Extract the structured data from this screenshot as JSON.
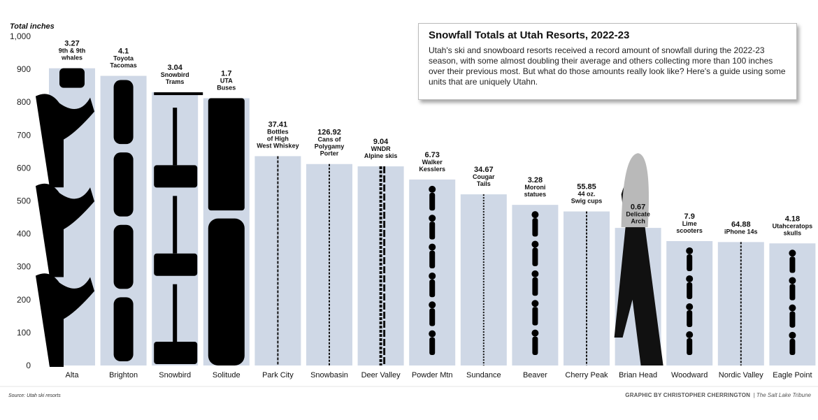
{
  "chart_data": {
    "type": "bar",
    "title": "Snowfall Totals at Utah Resorts, 2022-23",
    "subtitle": "Utah's ski and snowboard resorts received a record amount of snowfall during the 2022-23 season, with some almost doubling their average and others collecting more than 100 inches over their previous most. But what do those amounts really look like? Here's a guide using some units that are uniquely Utahn.",
    "ylabel": "Total inches",
    "ylim": [
      0,
      1000
    ],
    "yticks": [
      0,
      100,
      200,
      300,
      400,
      500,
      600,
      700,
      800,
      900,
      1000
    ],
    "yticks_text": [
      "0",
      "100",
      "200",
      "300",
      "400",
      "500",
      "600",
      "700",
      "800",
      "900",
      "1,000"
    ],
    "grid": false,
    "bar_color": "#cfd8e6",
    "icon_color": "#000000",
    "categories": [
      "Alta",
      "Brighton",
      "Snowbird",
      "Solitude",
      "Park City",
      "Snowbasin",
      "Deer Valley",
      "Powder Mtn",
      "Sundance",
      "Beaver",
      "Cherry Peak",
      "Brian Head",
      "Woodward",
      "Nordic Valley",
      "Eagle Point"
    ],
    "values": [
      903,
      880,
      830,
      812,
      636,
      612,
      605,
      565,
      520,
      488,
      468,
      418,
      378,
      375,
      371
    ],
    "unit_counts": [
      "3.27",
      "4.1",
      "3.04",
      "1.7",
      "37.41",
      "126.92",
      "9.04",
      "6.73",
      "34.67",
      "3.28",
      "55.85",
      "0.67",
      "7.9",
      "64.88",
      "4.18"
    ],
    "unit_labels": [
      [
        "9th & 9th",
        "whales"
      ],
      [
        "Toyota",
        "Tacomas"
      ],
      [
        "Snowbird",
        "Trams"
      ],
      [
        "UTA",
        "Buses"
      ],
      [
        "Bottles",
        "of High",
        "West Whiskey"
      ],
      [
        "Cans of",
        "Polygamy",
        "Porter"
      ],
      [
        "WNDR",
        "Alpine skis"
      ],
      [
        "Walker",
        "Kesslers"
      ],
      [
        "Cougar",
        "Tails"
      ],
      [
        "Moroni",
        "statues"
      ],
      [
        "44 oz.",
        "Swig cups"
      ],
      [
        "Delicate",
        "Arch"
      ],
      [
        "Lime",
        "scooters"
      ],
      [
        "iPhone 14s"
      ],
      [
        "Utahceratops",
        "skulls"
      ]
    ],
    "source": "Source: Utah ski resorts",
    "credit": "GRAPHIC BY CHRISTOPHER CHERRINGTON",
    "publisher": "The Salt Lake Tribune"
  }
}
